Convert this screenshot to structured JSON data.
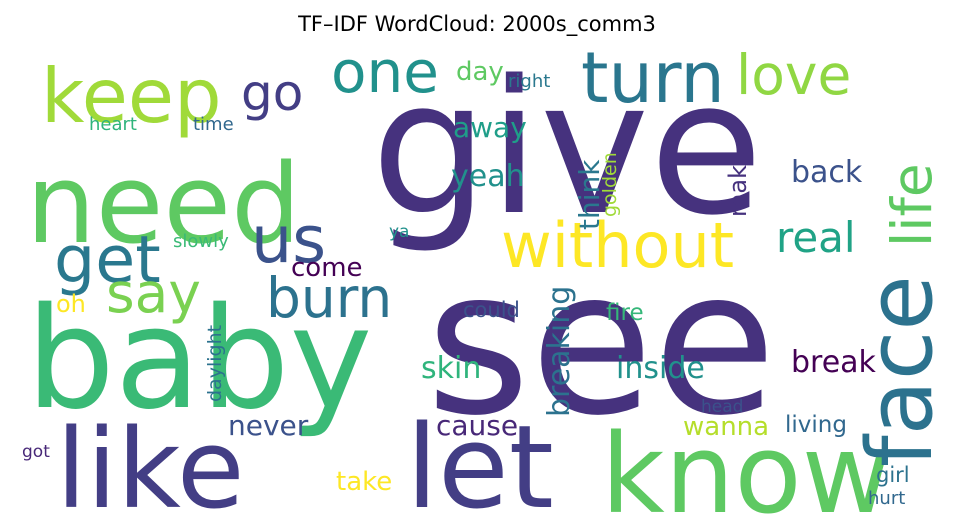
{
  "chart_data": {
    "type": "wordcloud",
    "title": "TF–IDF WordCloud: 2000s_comm3",
    "colormap": "viridis",
    "words": [
      {
        "text": "give",
        "weight": 1.0,
        "color": "#46327e"
      },
      {
        "text": "see",
        "weight": 0.97,
        "color": "#46327e"
      },
      {
        "text": "baby",
        "weight": 0.82,
        "color": "#3aba76"
      },
      {
        "text": "need",
        "weight": 0.72,
        "color": "#5ec962"
      },
      {
        "text": "like",
        "weight": 0.68,
        "color": "#433e85"
      },
      {
        "text": "let",
        "weight": 0.66,
        "color": "#433e85"
      },
      {
        "text": "know",
        "weight": 0.64,
        "color": "#5ec962"
      },
      {
        "text": "face",
        "weight": 0.56,
        "color": "#2c728e"
      },
      {
        "text": "keep",
        "weight": 0.46,
        "color": "#a0da39"
      },
      {
        "text": "turn",
        "weight": 0.42,
        "color": "#2a768e"
      },
      {
        "text": "without",
        "weight": 0.4,
        "color": "#fde725"
      },
      {
        "text": "get",
        "weight": 0.4,
        "color": "#2a788e"
      },
      {
        "text": "us",
        "weight": 0.38,
        "color": "#3b528b"
      },
      {
        "text": "one",
        "weight": 0.36,
        "color": "#21918c"
      },
      {
        "text": "life",
        "weight": 0.36,
        "color": "#5ec962"
      },
      {
        "text": "love",
        "weight": 0.34,
        "color": "#90d743"
      },
      {
        "text": "burn",
        "weight": 0.33,
        "color": "#2c728e"
      },
      {
        "text": "say",
        "weight": 0.33,
        "color": "#7ad151"
      },
      {
        "text": "go",
        "weight": 0.3,
        "color": "#433e85"
      },
      {
        "text": "real",
        "weight": 0.26,
        "color": "#20a386"
      },
      {
        "text": "know",
        "weight": 0.0,
        "color": "#5ec962",
        "skip": true
      },
      {
        "text": "breaking",
        "weight": 0.2,
        "color": "#2c728e"
      },
      {
        "text": "inside",
        "weight": 0.18,
        "color": "#21918c"
      },
      {
        "text": "skin",
        "weight": 0.18,
        "color": "#2fb47c"
      },
      {
        "text": "break",
        "weight": 0.18,
        "color": "#440154"
      },
      {
        "text": "back",
        "weight": 0.18,
        "color": "#3b528b"
      },
      {
        "text": "yeah",
        "weight": 0.17,
        "color": "#21918c"
      },
      {
        "text": "away",
        "weight": 0.16,
        "color": "#1f9e89"
      },
      {
        "text": "think",
        "weight": 0.16,
        "color": "#2a788e"
      },
      {
        "text": "never",
        "weight": 0.16,
        "color": "#3b528b"
      },
      {
        "text": "cause",
        "weight": 0.16,
        "color": "#482878"
      },
      {
        "text": "wanna",
        "weight": 0.15,
        "color": "#b5de2b"
      },
      {
        "text": "come",
        "weight": 0.14,
        "color": "#440154"
      },
      {
        "text": "take",
        "weight": 0.14,
        "color": "#fde725"
      },
      {
        "text": "make",
        "weight": 0.13,
        "color": "#46327e"
      },
      {
        "text": "day",
        "weight": 0.13,
        "color": "#5ec962"
      },
      {
        "text": "oh",
        "weight": 0.13,
        "color": "#fde725"
      },
      {
        "text": "living",
        "weight": 0.12,
        "color": "#31688e"
      },
      {
        "text": "fire",
        "weight": 0.12,
        "color": "#35b779"
      },
      {
        "text": "could",
        "weight": 0.11,
        "color": "#3b528b"
      },
      {
        "text": "girl",
        "weight": 0.11,
        "color": "#2c728e"
      },
      {
        "text": "golden",
        "weight": 0.1,
        "color": "#a0da39"
      },
      {
        "text": "daylight",
        "weight": 0.1,
        "color": "#2c728e"
      },
      {
        "text": "slowly",
        "weight": 0.1,
        "color": "#3aba76"
      },
      {
        "text": "hurt",
        "weight": 0.1,
        "color": "#31688e"
      },
      {
        "text": "heart",
        "weight": 0.1,
        "color": "#2fb47c"
      },
      {
        "text": "time",
        "weight": 0.1,
        "color": "#31688e"
      },
      {
        "text": "right",
        "weight": 0.1,
        "color": "#2a788e"
      },
      {
        "text": "head",
        "weight": 0.09,
        "color": "#3b528b"
      },
      {
        "text": "got",
        "weight": 0.09,
        "color": "#482878"
      },
      {
        "text": "ya",
        "weight": 0.09,
        "color": "#21918c"
      }
    ]
  }
}
